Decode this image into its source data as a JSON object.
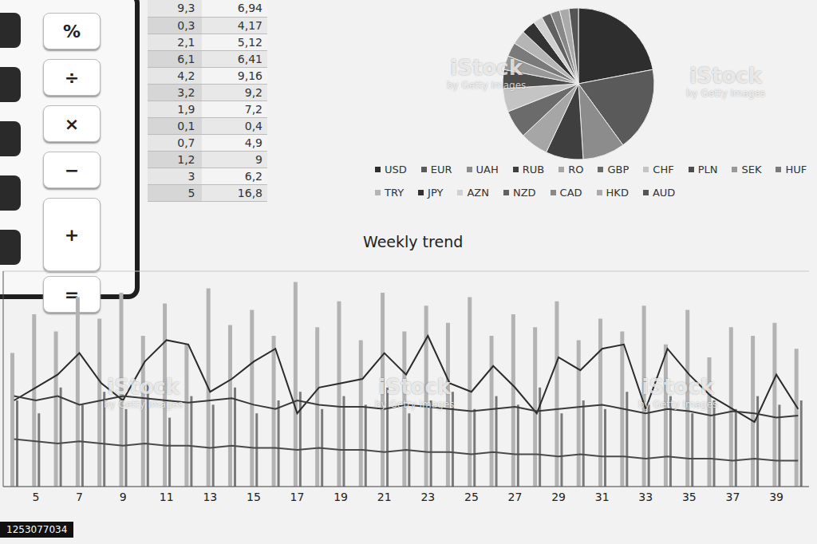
{
  "table": {
    "rows": [
      [
        "9,3",
        "6,94"
      ],
      [
        "0,3",
        "4,17"
      ],
      [
        "2,1",
        "5,12"
      ],
      [
        "6,1",
        "6,41"
      ],
      [
        "4,2",
        "9,16"
      ],
      [
        "3,2",
        "9,2"
      ],
      [
        "1,9",
        "7,2"
      ],
      [
        "0,1",
        "0,4"
      ],
      [
        "0,7",
        "4,9"
      ],
      [
        "1,2",
        "9"
      ],
      [
        "3",
        "6,2"
      ],
      [
        "5",
        "16,8"
      ]
    ]
  },
  "calculator": {
    "keys": [
      "%",
      "÷",
      "×",
      "−",
      "+",
      "="
    ]
  },
  "watermark": {
    "text": "iStock",
    "subtext": "by Getty Images",
    "id": "1253077034"
  },
  "chart_data": [
    {
      "type": "pie",
      "categories": [
        "USD",
        "EUR",
        "UAH",
        "RUB",
        "RO",
        "GBP",
        "CHF",
        "PLN",
        "SEK",
        "HUF",
        "TRY",
        "JPY",
        "AZN",
        "NZD",
        "CAD",
        "HKD",
        "AUD"
      ],
      "values": [
        22,
        18,
        9,
        8,
        6,
        6,
        5,
        4,
        3,
        3,
        3,
        3,
        2,
        2,
        2,
        2,
        2
      ],
      "colors": [
        "#2e2e2e",
        "#5a5a5a",
        "#8c8c8c",
        "#3f3f3f",
        "#a6a6a6",
        "#6b6b6b",
        "#c4c4c4",
        "#4d4d4d",
        "#999999",
        "#7a7a7a",
        "#b5b5b5",
        "#333333",
        "#d0d0d0",
        "#606060",
        "#888888",
        "#aaaaaa",
        "#555555"
      ],
      "legend": "bottom",
      "data_labels": false
    },
    {
      "type": "bar",
      "title": "Weekly trend",
      "categories": [
        null,
        5,
        null,
        7,
        null,
        9,
        null,
        11,
        null,
        13,
        null,
        15,
        null,
        17,
        null,
        19,
        null,
        21,
        null,
        23,
        null,
        25,
        null,
        27,
        null,
        29,
        null,
        31,
        null,
        33,
        null,
        35,
        null,
        37,
        null,
        39,
        null
      ],
      "series": [
        {
          "type": "bar",
          "color": "#b3b3b3",
          "values": [
            62,
            80,
            72,
            88,
            78,
            90,
            70,
            85,
            66,
            92,
            75,
            82,
            70,
            95,
            74,
            86,
            68,
            90,
            72,
            84,
            76,
            88,
            70,
            80,
            74,
            86,
            68,
            78,
            72,
            84,
            66,
            82,
            60,
            74,
            70,
            76,
            64
          ]
        },
        {
          "type": "bar",
          "color": "#7a7a7a",
          "values": [
            40,
            34,
            46,
            38,
            44,
            36,
            48,
            32,
            42,
            38,
            46,
            34,
            40,
            44,
            36,
            42,
            38,
            46,
            34,
            40,
            44,
            36,
            42,
            38,
            46,
            34,
            40,
            36,
            44,
            38,
            42,
            34,
            40,
            36,
            42,
            38,
            40
          ]
        },
        {
          "type": "line",
          "color": "#2b2b2b",
          "marker": "none",
          "values": [
            40,
            46,
            52,
            62,
            48,
            40,
            58,
            68,
            66,
            44,
            50,
            58,
            64,
            34,
            46,
            48,
            50,
            62,
            52,
            70,
            48,
            44,
            56,
            46,
            34,
            60,
            54,
            64,
            66,
            36,
            64,
            52,
            42,
            36,
            30,
            52,
            36
          ]
        },
        {
          "type": "line",
          "color": "#3a3a3a",
          "marker": "none",
          "values": [
            42,
            40,
            42,
            38,
            40,
            42,
            41,
            40,
            39,
            40,
            41,
            38,
            36,
            40,
            38,
            37,
            37,
            36,
            38,
            37,
            36,
            35,
            36,
            37,
            35,
            36,
            37,
            38,
            36,
            34,
            36,
            35,
            33,
            35,
            34,
            32,
            33
          ]
        },
        {
          "type": "line",
          "color": "#4a4a4a",
          "marker": "none",
          "values": [
            22,
            21,
            20,
            21,
            20,
            19,
            20,
            19,
            19,
            18,
            19,
            18,
            18,
            17,
            18,
            17,
            17,
            16,
            17,
            16,
            16,
            15,
            16,
            15,
            15,
            14,
            15,
            14,
            14,
            13,
            14,
            13,
            13,
            12,
            13,
            12,
            12
          ]
        }
      ],
      "ylim": [
        0,
        100
      ],
      "yticks": [
        0,
        20,
        40,
        60,
        80,
        100
      ],
      "grid": true,
      "tick_labels": "x"
    }
  ]
}
